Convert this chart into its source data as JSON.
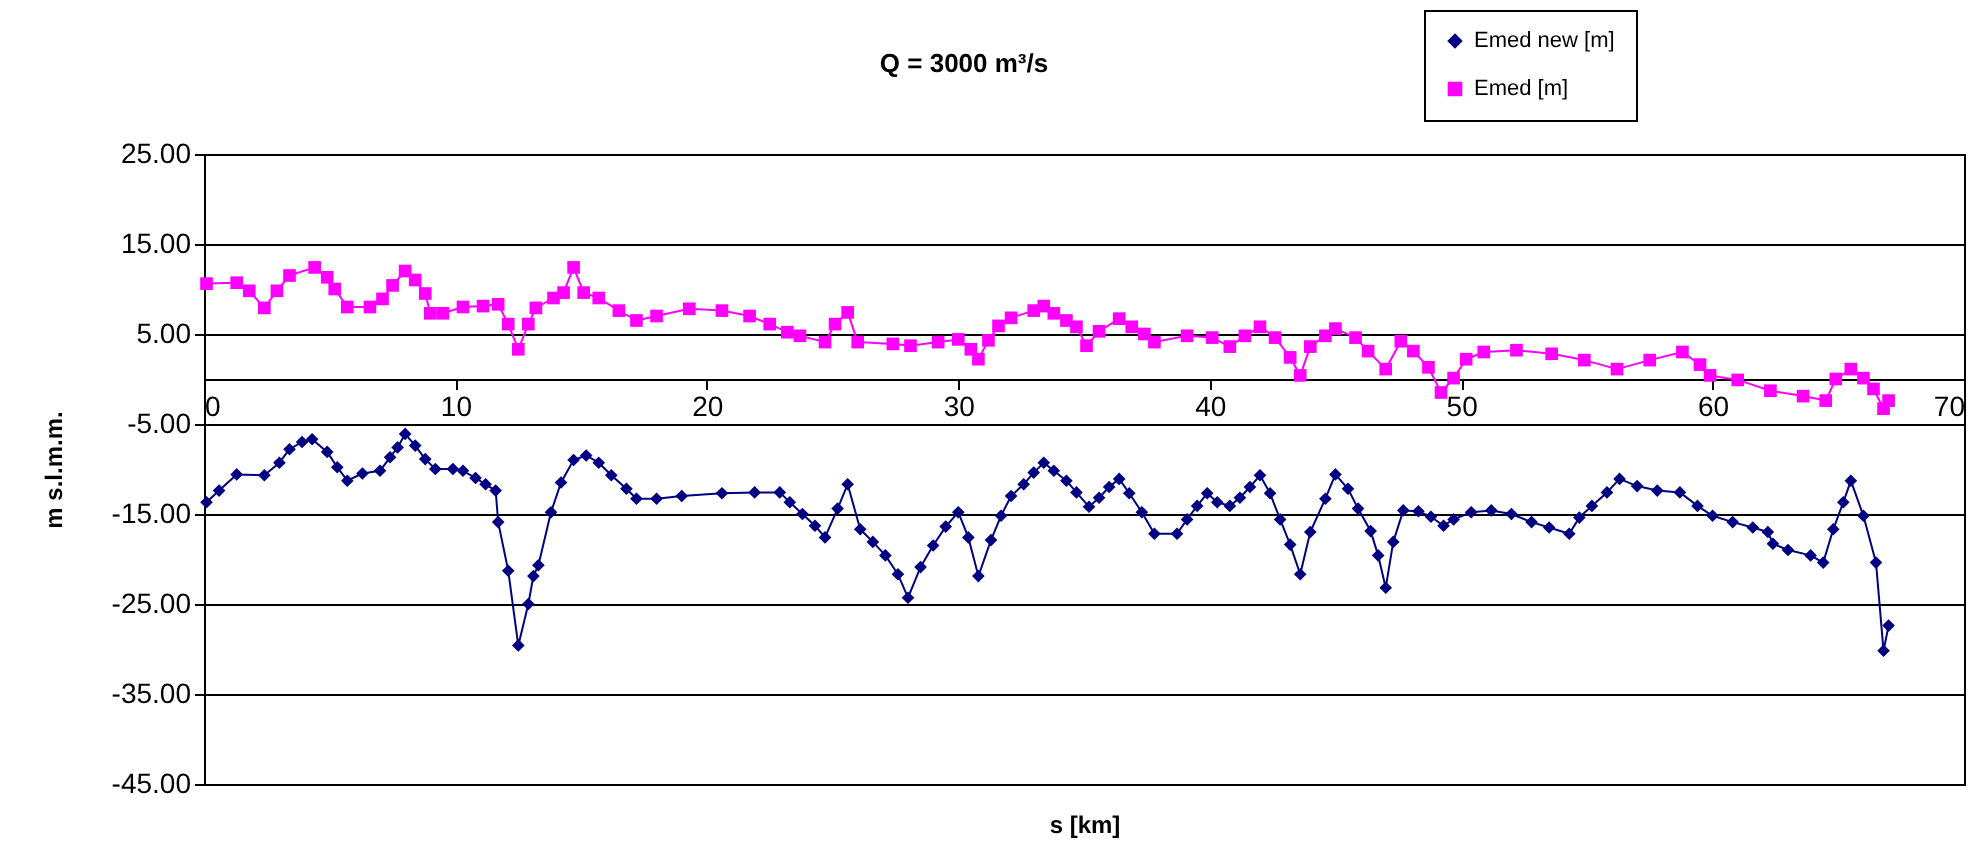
{
  "chart_data": {
    "type": "line",
    "title": "Q = 3000 m³/s",
    "xlabel": "s [km]",
    "ylabel": "m s.l.m.m.",
    "xlim": [
      0,
      70
    ],
    "xticks": [
      0,
      10,
      20,
      30,
      40,
      50,
      60,
      70
    ],
    "ylim": [
      -45,
      25
    ],
    "yticks": [
      {
        "value": -45,
        "label": "-45.00"
      },
      {
        "value": -35,
        "label": "-35.00"
      },
      {
        "value": -25,
        "label": "-25.00"
      },
      {
        "value": -15,
        "label": "-15.00"
      },
      {
        "value": -5,
        "label": "-5.00"
      },
      {
        "value": 5,
        "label": "5.00"
      },
      {
        "value": 15,
        "label": "15.00"
      },
      {
        "value": 25,
        "label": "25.00"
      }
    ],
    "grid": "y",
    "legend": "top right",
    "series": [
      {
        "name": "Emed new [m]",
        "color": "#000080",
        "marker": "diamond",
        "x": [
          0.1,
          0.6,
          1.3,
          2.4,
          3.0,
          3.4,
          3.9,
          4.3,
          4.9,
          5.3,
          5.7,
          6.3,
          7.0,
          7.4,
          7.7,
          8.0,
          8.4,
          8.8,
          9.2,
          9.9,
          10.3,
          10.8,
          11.2,
          11.6,
          11.7,
          12.1,
          12.5,
          12.9,
          13.1,
          13.3,
          13.8,
          14.2,
          14.7,
          15.2,
          15.7,
          16.2,
          16.8,
          17.2,
          18.0,
          19.0,
          20.6,
          21.9,
          22.9,
          23.3,
          23.8,
          24.3,
          24.7,
          25.2,
          25.6,
          26.1,
          26.6,
          27.1,
          27.6,
          28.0,
          28.5,
          29.0,
          29.5,
          30.0,
          30.4,
          30.8,
          31.3,
          31.7,
          32.1,
          32.6,
          33.0,
          33.4,
          33.8,
          34.3,
          34.7,
          35.2,
          35.6,
          36.0,
          36.4,
          36.8,
          37.3,
          37.8,
          38.7,
          39.1,
          39.5,
          39.9,
          40.3,
          40.8,
          41.2,
          41.6,
          42.0,
          42.4,
          42.8,
          43.2,
          43.6,
          44.0,
          44.6,
          45.0,
          45.5,
          45.9,
          46.4,
          46.7,
          47.0,
          47.3,
          47.7,
          48.3,
          48.8,
          49.3,
          49.7,
          50.4,
          51.2,
          52.0,
          52.8,
          53.5,
          54.3,
          54.7,
          55.2,
          55.8,
          56.3,
          57.0,
          57.8,
          58.7,
          59.4,
          60.0,
          60.8,
          61.6,
          62.2,
          62.4,
          63.0,
          63.9,
          64.4,
          64.8,
          65.2,
          65.5,
          66.0,
          66.5,
          66.8,
          67.0
        ],
        "values": [
          -13.7,
          -12.4,
          -10.6,
          -10.7,
          -9.3,
          -7.8,
          -7.0,
          -6.7,
          -8.1,
          -9.8,
          -11.3,
          -10.5,
          -10.2,
          -8.7,
          -7.6,
          -6.1,
          -7.4,
          -8.9,
          -10.0,
          -10.0,
          -10.2,
          -11.0,
          -11.7,
          -12.4,
          -15.9,
          -21.3,
          -29.6,
          -25.0,
          -21.9,
          -20.7,
          -14.8,
          -11.5,
          -9.0,
          -8.5,
          -9.3,
          -10.7,
          -12.2,
          -13.3,
          -13.3,
          -13.0,
          -12.7,
          -12.6,
          -12.6,
          -13.7,
          -15.0,
          -16.3,
          -17.6,
          -14.4,
          -11.7,
          -16.7,
          -18.1,
          -19.6,
          -21.7,
          -24.3,
          -20.9,
          -18.5,
          -16.4,
          -14.8,
          -17.6,
          -21.9,
          -17.9,
          -15.2,
          -13.0,
          -11.7,
          -10.4,
          -9.3,
          -10.2,
          -11.3,
          -12.6,
          -14.2,
          -13.2,
          -12.0,
          -11.1,
          -12.7,
          -14.8,
          -17.2,
          -17.2,
          -15.6,
          -14.1,
          -12.7,
          -13.7,
          -14.1,
          -13.2,
          -12.0,
          -10.7,
          -12.7,
          -15.6,
          -18.4,
          -21.7,
          -17.0,
          -13.3,
          -10.6,
          -12.2,
          -14.4,
          -16.9,
          -19.6,
          -23.2,
          -18.1,
          -14.6,
          -14.7,
          -15.3,
          -16.3,
          -15.6,
          -14.8,
          -14.6,
          -15.0,
          -15.9,
          -16.5,
          -17.2,
          -15.4,
          -14.1,
          -12.6,
          -11.1,
          -11.9,
          -12.4,
          -12.6,
          -14.1,
          -15.2,
          -15.9,
          -16.5,
          -17.0,
          -18.3,
          -19.0,
          -19.6,
          -20.4,
          -16.7,
          -13.7,
          -11.3,
          -15.2,
          -20.4,
          -30.2,
          -27.4
        ]
      },
      {
        "name": "Emed [m]",
        "color": "#ff00ff",
        "marker": "square",
        "x": [
          0.1,
          1.3,
          1.8,
          2.4,
          2.9,
          3.4,
          4.4,
          4.9,
          5.2,
          5.7,
          6.6,
          7.1,
          7.5,
          8.0,
          8.4,
          8.8,
          9.0,
          9.5,
          10.3,
          11.1,
          11.7,
          12.1,
          12.5,
          12.9,
          13.2,
          13.9,
          14.3,
          14.7,
          15.1,
          15.7,
          16.5,
          17.2,
          18.0,
          19.3,
          20.6,
          21.7,
          22.5,
          23.2,
          23.7,
          24.7,
          25.1,
          25.6,
          26.0,
          27.4,
          28.1,
          29.2,
          30.0,
          30.5,
          30.8,
          31.2,
          31.6,
          32.1,
          33.0,
          33.4,
          33.8,
          34.3,
          34.7,
          35.1,
          35.6,
          36.4,
          36.9,
          37.4,
          37.8,
          39.1,
          40.1,
          40.8,
          41.4,
          42.0,
          42.6,
          43.2,
          43.6,
          44.0,
          44.6,
          45.0,
          45.8,
          46.3,
          47.0,
          47.6,
          48.1,
          48.7,
          49.2,
          49.7,
          50.2,
          50.9,
          52.2,
          53.6,
          54.9,
          56.2,
          57.5,
          58.8,
          59.5,
          59.9,
          61.0,
          62.3,
          63.6,
          64.5,
          64.9,
          65.5,
          66.0,
          66.4,
          66.8,
          67.0
        ],
        "values": [
          10.6,
          10.7,
          9.8,
          7.9,
          9.8,
          11.5,
          12.4,
          11.3,
          10.0,
          8.0,
          8.0,
          8.9,
          10.4,
          12.0,
          11.0,
          9.5,
          7.3,
          7.3,
          8.0,
          8.1,
          8.3,
          6.1,
          3.3,
          6.1,
          7.9,
          9.0,
          9.6,
          12.4,
          9.6,
          9.0,
          7.6,
          6.5,
          7.0,
          7.8,
          7.6,
          7.0,
          6.1,
          5.2,
          4.8,
          4.1,
          6.1,
          7.4,
          4.1,
          3.9,
          3.7,
          4.1,
          4.4,
          3.3,
          2.2,
          4.3,
          5.9,
          6.8,
          7.6,
          8.1,
          7.3,
          6.5,
          5.8,
          3.7,
          5.3,
          6.7,
          5.8,
          5.0,
          4.1,
          4.8,
          4.6,
          3.6,
          4.8,
          5.8,
          4.6,
          2.4,
          0.4,
          3.6,
          4.8,
          5.6,
          4.6,
          3.1,
          1.1,
          4.2,
          3.1,
          1.3,
          -1.5,
          0.1,
          2.2,
          3.0,
          3.2,
          2.8,
          2.1,
          1.1,
          2.1,
          3.0,
          1.6,
          0.4,
          -0.1,
          -1.3,
          -1.9,
          -2.4,
          0,
          1.1,
          0.1,
          -1.1,
          -3.3,
          -2.4
        ]
      }
    ]
  }
}
